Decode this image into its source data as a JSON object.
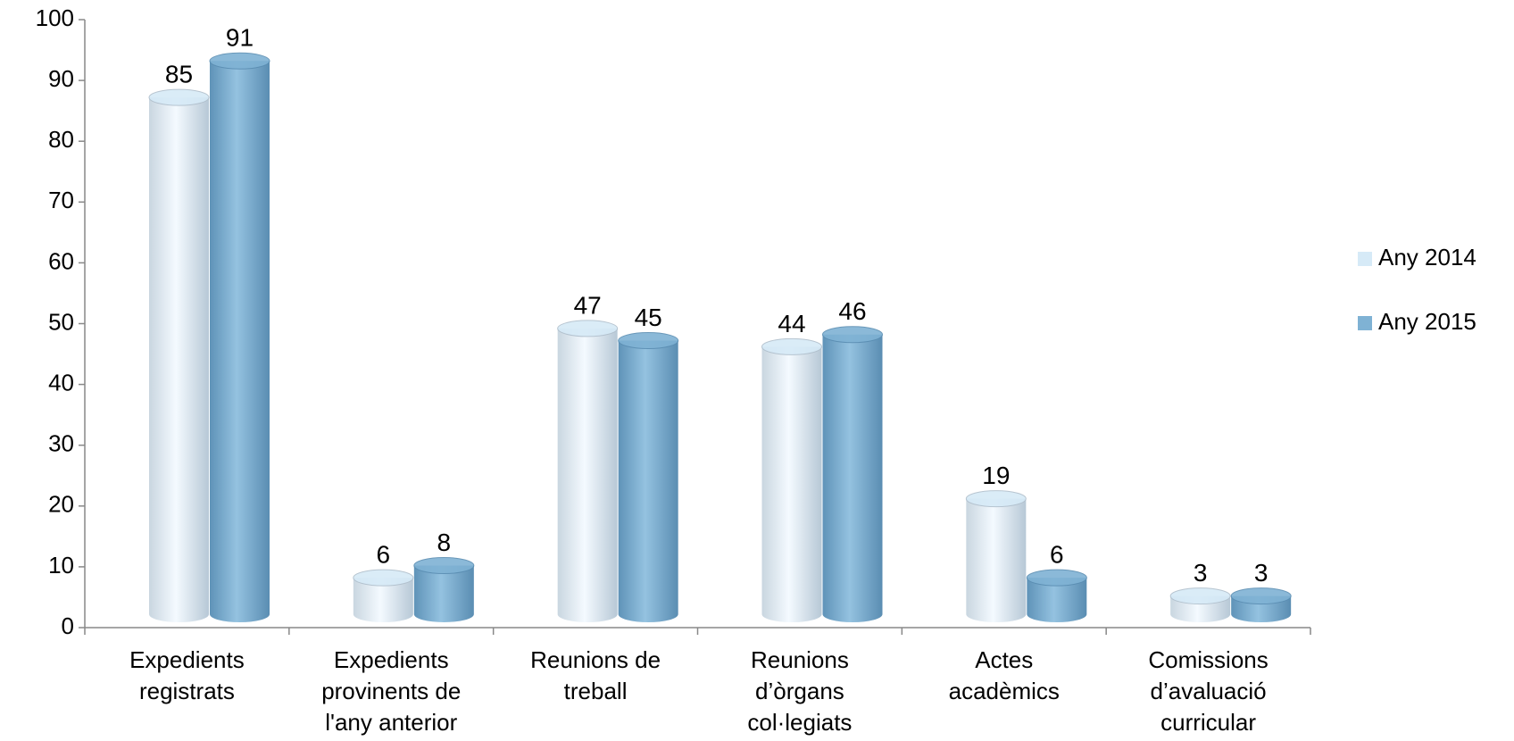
{
  "chart_data": {
    "type": "bar",
    "categories": [
      [
        "Expedients",
        "registrats"
      ],
      [
        "Expedients",
        "provinents de",
        "l'any anterior"
      ],
      [
        "Reunions de",
        "treball"
      ],
      [
        "Reunions",
        "d’òrgans",
        "col·legiats"
      ],
      [
        "Actes",
        "acadèmics"
      ],
      [
        "Comissions",
        "d’avaluació",
        "curricular"
      ]
    ],
    "series": [
      {
        "name": "Any 2014",
        "color": "#d6eaf7",
        "values": [
          85,
          6,
          47,
          44,
          19,
          3
        ]
      },
      {
        "name": "Any 2015",
        "color": "#7fb2d4",
        "values": [
          91,
          8,
          45,
          46,
          6,
          3
        ]
      }
    ],
    "ylim": [
      0,
      100
    ],
    "yticks": [
      0,
      10,
      20,
      30,
      40,
      50,
      60,
      70,
      80,
      90,
      100
    ],
    "legend": "right"
  }
}
